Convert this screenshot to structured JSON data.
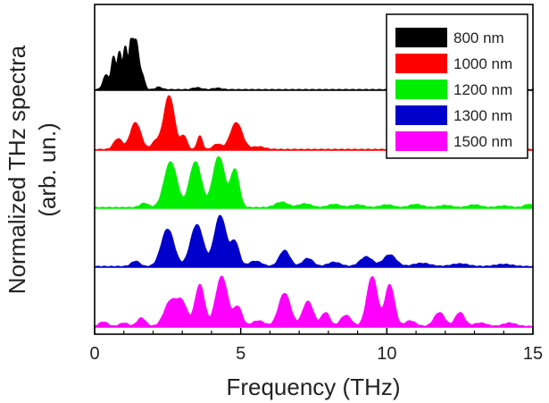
{
  "chart_data": {
    "type": "area",
    "title": "",
    "xlabel": "Frequency (THz)",
    "ylabel_lines": [
      "Normalized THz spectra",
      "(arb. un.)"
    ],
    "xlim": [
      0,
      15
    ],
    "xticks": [
      0,
      5,
      10,
      15
    ],
    "yticks": "none (panels vertically offset)",
    "grid": false,
    "legend": {
      "placement": "top-right",
      "entries": [
        "800 nm",
        "1000 nm",
        "1200 nm",
        "1300 nm",
        "1500 nm"
      ]
    },
    "series": [
      {
        "name": "800 nm",
        "color": "#000000",
        "peaks": [
          [
            0.4,
            0.3,
            0.15
          ],
          [
            0.65,
            0.65,
            0.1
          ],
          [
            0.85,
            0.75,
            0.1
          ],
          [
            1.05,
            0.85,
            0.1
          ],
          [
            1.25,
            0.95,
            0.1
          ],
          [
            1.42,
            0.95,
            0.12
          ],
          [
            1.62,
            0.3,
            0.12
          ],
          [
            2.2,
            0.05,
            0.15
          ],
          [
            3.5,
            0.04,
            0.2
          ],
          [
            4.2,
            0.03,
            0.2
          ]
        ]
      },
      {
        "name": "1000 nm",
        "color": "#ff0000",
        "peaks": [
          [
            0.8,
            0.2,
            0.2
          ],
          [
            1.4,
            0.5,
            0.25
          ],
          [
            2.1,
            0.15,
            0.2
          ],
          [
            2.55,
            1.0,
            0.25
          ],
          [
            3.05,
            0.25,
            0.15
          ],
          [
            3.6,
            0.25,
            0.12
          ],
          [
            4.2,
            0.1,
            0.2
          ],
          [
            4.85,
            0.5,
            0.28
          ],
          [
            5.6,
            0.05,
            0.3
          ]
        ]
      },
      {
        "name": "1200 nm",
        "color": "#00ee00",
        "peaks": [
          [
            1.7,
            0.08,
            0.2
          ],
          [
            2.6,
            0.85,
            0.3
          ],
          [
            3.45,
            0.85,
            0.28
          ],
          [
            4.25,
            0.95,
            0.28
          ],
          [
            4.8,
            0.7,
            0.2
          ],
          [
            6.4,
            0.1,
            0.3
          ],
          [
            7.2,
            0.07,
            0.3
          ],
          [
            8.2,
            0.06,
            0.3
          ],
          [
            9.0,
            0.05,
            0.3
          ],
          [
            10.0,
            0.05,
            0.3
          ],
          [
            11.0,
            0.06,
            0.3
          ],
          [
            12.0,
            0.04,
            0.3
          ],
          [
            13.0,
            0.05,
            0.3
          ],
          [
            14.0,
            0.03,
            0.3
          ],
          [
            14.85,
            0.06,
            0.2
          ]
        ]
      },
      {
        "name": "1300 nm",
        "color": "#0000cc",
        "peaks": [
          [
            1.4,
            0.1,
            0.2
          ],
          [
            2.5,
            0.7,
            0.3
          ],
          [
            3.5,
            0.78,
            0.3
          ],
          [
            4.3,
            0.95,
            0.28
          ],
          [
            4.8,
            0.45,
            0.2
          ],
          [
            5.5,
            0.1,
            0.3
          ],
          [
            6.5,
            0.3,
            0.25
          ],
          [
            7.3,
            0.15,
            0.25
          ],
          [
            8.2,
            0.08,
            0.3
          ],
          [
            9.3,
            0.18,
            0.3
          ],
          [
            10.1,
            0.22,
            0.3
          ],
          [
            11.2,
            0.06,
            0.4
          ],
          [
            12.5,
            0.05,
            0.4
          ],
          [
            14.0,
            0.04,
            0.4
          ]
        ]
      },
      {
        "name": "1500 nm",
        "color": "#ff00ff",
        "peaks": [
          [
            0.3,
            0.08,
            0.2
          ],
          [
            1.0,
            0.06,
            0.2
          ],
          [
            1.6,
            0.15,
            0.2
          ],
          [
            2.6,
            0.45,
            0.3
          ],
          [
            3.0,
            0.4,
            0.25
          ],
          [
            3.6,
            0.75,
            0.22
          ],
          [
            4.35,
            0.9,
            0.28
          ],
          [
            4.9,
            0.35,
            0.2
          ],
          [
            5.6,
            0.1,
            0.3
          ],
          [
            6.5,
            0.6,
            0.28
          ],
          [
            7.3,
            0.45,
            0.25
          ],
          [
            7.9,
            0.25,
            0.2
          ],
          [
            8.6,
            0.2,
            0.25
          ],
          [
            9.5,
            0.9,
            0.25
          ],
          [
            10.1,
            0.75,
            0.22
          ],
          [
            10.8,
            0.1,
            0.25
          ],
          [
            11.8,
            0.25,
            0.25
          ],
          [
            12.5,
            0.25,
            0.22
          ],
          [
            13.2,
            0.06,
            0.3
          ],
          [
            14.2,
            0.06,
            0.3
          ]
        ]
      }
    ]
  }
}
